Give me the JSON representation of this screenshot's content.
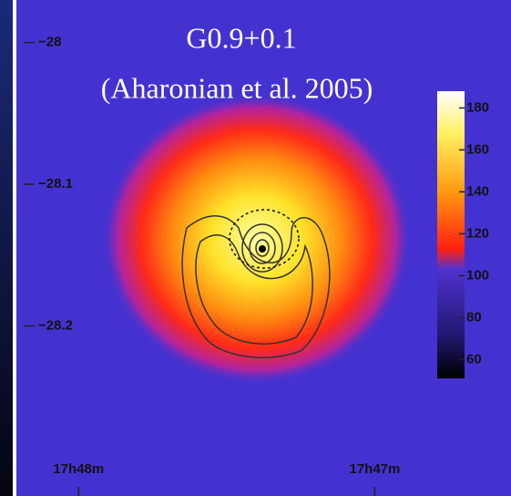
{
  "chart_data": {
    "type": "sky-map",
    "title": "G0.9+0.1",
    "subtitle": "(Aharonian et al. 2005)",
    "xlim": [
      48.21,
      46.54
    ],
    "xticks": [
      {
        "value": 48,
        "label": "17h48m"
      },
      {
        "value": 47,
        "label": "17h47m"
      }
    ],
    "ylim": [
      -28.32,
      -27.97
    ],
    "yticks": [
      {
        "value": -28,
        "label": "−28"
      },
      {
        "value": -28.1,
        "label": "−28.1"
      },
      {
        "value": -28.2,
        "label": "−28.2"
      }
    ],
    "colorbar": {
      "lim": [
        51,
        188
      ],
      "ticks": [
        60,
        80,
        100,
        120,
        140,
        160,
        180
      ]
    }
  }
}
